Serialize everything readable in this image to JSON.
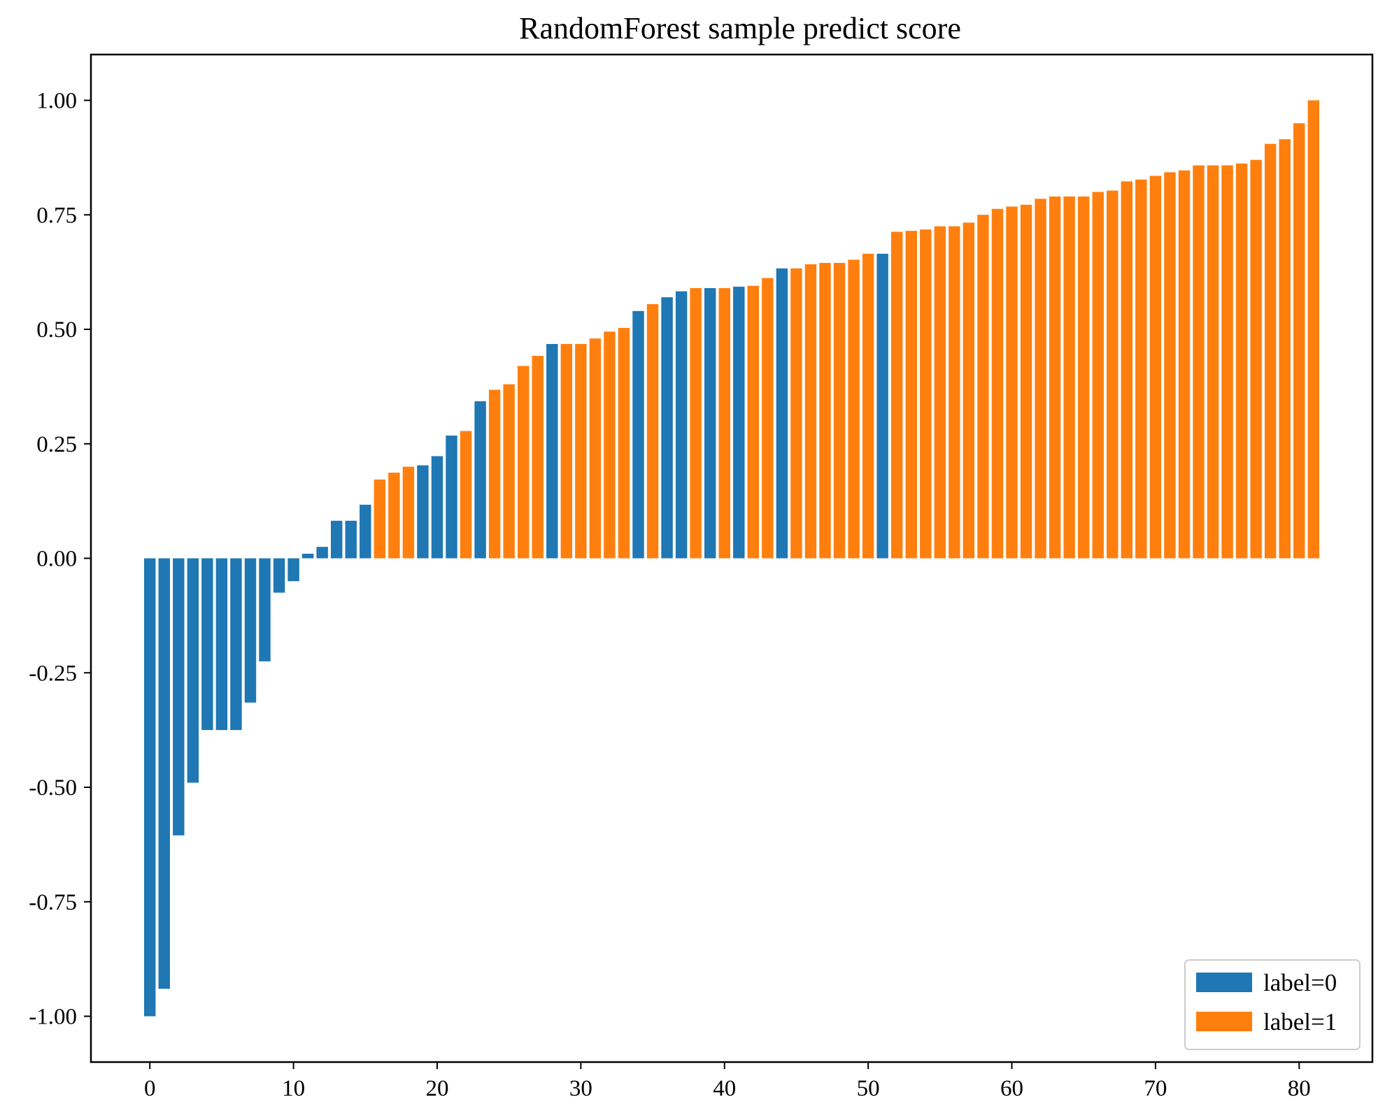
{
  "chart_data": {
    "type": "bar",
    "title": "RandomForest sample predict score",
    "xlabel": "",
    "ylabel": "",
    "xlim": [
      -4.1,
      85.1
    ],
    "ylim": [
      -1.1,
      1.1
    ],
    "xticks": [
      0,
      10,
      20,
      30,
      40,
      50,
      60,
      70,
      80
    ],
    "xtick_labels": [
      "0",
      "10",
      "20",
      "30",
      "40",
      "50",
      "60",
      "70",
      "80"
    ],
    "yticks": [
      1.0,
      0.75,
      0.5,
      0.25,
      0.0,
      -0.25,
      -0.5,
      -0.75,
      -1.0
    ],
    "ytick_labels": [
      "1.00",
      "0.75",
      "0.50",
      "0.25",
      "0.00",
      "-0.25",
      "-0.50",
      "-0.75",
      "-1.00"
    ],
    "grid": false,
    "legend_position": "lower-right",
    "series": [
      {
        "name": "label=0",
        "color": "#1f77b4"
      },
      {
        "name": "label=1",
        "color": "#ff7f0e"
      }
    ],
    "values": [
      -1.0,
      -0.94,
      -0.605,
      -0.49,
      -0.375,
      -0.375,
      -0.375,
      -0.315,
      -0.225,
      -0.075,
      -0.05,
      0.01,
      0.025,
      0.082,
      0.082,
      0.117,
      0.172,
      0.187,
      0.2,
      0.203,
      0.223,
      0.268,
      0.278,
      0.343,
      0.368,
      0.38,
      0.42,
      0.442,
      0.468,
      0.468,
      0.468,
      0.48,
      0.495,
      0.503,
      0.54,
      0.555,
      0.57,
      0.583,
      0.59,
      0.59,
      0.59,
      0.593,
      0.595,
      0.612,
      0.633,
      0.633,
      0.642,
      0.645,
      0.645,
      0.652,
      0.665,
      0.665,
      0.713,
      0.715,
      0.718,
      0.725,
      0.725,
      0.733,
      0.75,
      0.763,
      0.768,
      0.772,
      0.785,
      0.79,
      0.79,
      0.79,
      0.8,
      0.803,
      0.823,
      0.827,
      0.835,
      0.843,
      0.847,
      0.858,
      0.858,
      0.858,
      0.862,
      0.87,
      0.905,
      0.915,
      0.95,
      1.0
    ],
    "labels": [
      0,
      0,
      0,
      0,
      0,
      0,
      0,
      0,
      0,
      0,
      0,
      0,
      0,
      0,
      0,
      0,
      1,
      1,
      1,
      0,
      0,
      0,
      1,
      0,
      1,
      1,
      1,
      1,
      0,
      1,
      1,
      1,
      1,
      1,
      0,
      1,
      0,
      0,
      1,
      0,
      1,
      0,
      1,
      1,
      0,
      1,
      1,
      1,
      1,
      1,
      1,
      0,
      1,
      1,
      1,
      1,
      1,
      1,
      1,
      1,
      1,
      1,
      1,
      1,
      1,
      1,
      1,
      1,
      1,
      1,
      1,
      1,
      1,
      1,
      1,
      1,
      1,
      1,
      1,
      1,
      1,
      1
    ]
  }
}
